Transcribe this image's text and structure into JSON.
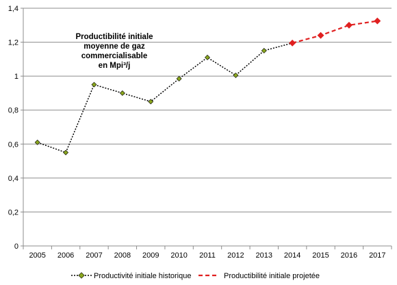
{
  "chart_data": {
    "type": "line",
    "x": [
      2005,
      2006,
      2007,
      2008,
      2009,
      2010,
      2011,
      2012,
      2013,
      2014,
      2015,
      2016,
      2017
    ],
    "ylim": [
      0,
      1.4
    ],
    "yticks": [
      "0",
      "0,2",
      "0,4",
      "0,6",
      "0,8",
      "1",
      "1,2",
      "1,4"
    ],
    "ytick_values": [
      0,
      0.2,
      0.4,
      0.6,
      0.8,
      1.0,
      1.2,
      1.4
    ],
    "grid": true,
    "legend_placement": "bottom",
    "annotation": [
      "Productibilité initiale",
      "moyenne de gaz",
      "commercialisable",
      "en Mpi³/j"
    ],
    "series": [
      {
        "name": "Productivité initiale historique",
        "color": "#000000",
        "marker_color": "#8aa61f",
        "line_style": "dotted",
        "x": [
          2005,
          2006,
          2007,
          2008,
          2009,
          2010,
          2011,
          2012,
          2013,
          2014
        ],
        "values": [
          0.61,
          0.55,
          0.95,
          0.9,
          0.85,
          0.985,
          1.11,
          1.005,
          1.15,
          1.195
        ]
      },
      {
        "name": "Productibilité initiale projetée",
        "color": "#e02020",
        "marker_color": "#e02020",
        "line_style": "dashed",
        "x": [
          2014,
          2015,
          2016,
          2017
        ],
        "values": [
          1.195,
          1.24,
          1.3,
          1.325
        ]
      }
    ]
  }
}
